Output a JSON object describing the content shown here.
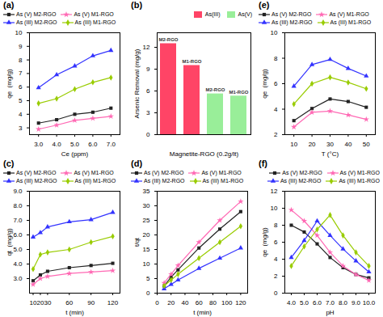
{
  "chart_data": [
    {
      "type": "line",
      "title": "(a)",
      "xlabel": "Ce (ppm)",
      "ylabel": "qe  (mg/g)",
      "xlim": [
        2.5,
        7.5
      ],
      "ylim": [
        2.5,
        10
      ],
      "xticks": [
        3,
        4,
        5,
        6,
        7
      ],
      "yticks": [
        3,
        4,
        5,
        6,
        7,
        8,
        9,
        10
      ],
      "legend": "upper left",
      "x": [
        3,
        4,
        5,
        6,
        7
      ],
      "series": [
        {
          "name": "As (V) M2-RGO",
          "color": "#222222",
          "marker": "square",
          "values": [
            3.35,
            3.6,
            4.0,
            4.15,
            4.45
          ]
        },
        {
          "name": "As (V) M1-RGO",
          "color": "#ff69b4",
          "marker": "star",
          "values": [
            2.9,
            3.2,
            3.55,
            3.7,
            3.85
          ]
        },
        {
          "name": "As (III) M2-RGO",
          "color": "#3333ff",
          "marker": "triangle",
          "values": [
            5.95,
            6.9,
            7.55,
            8.3,
            8.7
          ]
        },
        {
          "name": "As (III) M1-RGO",
          "color": "#99cc00",
          "marker": "diamond",
          "values": [
            4.8,
            5.15,
            5.85,
            6.35,
            6.7
          ]
        }
      ]
    },
    {
      "type": "bar",
      "title": "(b)",
      "xlabel": "Magnetite-RGO (0.2g/lt)",
      "ylabel": "Arsenic Removal (mg/g)",
      "ylim": [
        0,
        14
      ],
      "yticks": [
        0,
        3,
        6,
        9,
        12
      ],
      "tick_labels": "y",
      "legend": "upper right",
      "categories": [
        "M2-RGO",
        "M1-RGO",
        "M2-RGO",
        "M1-RGO"
      ],
      "series": [
        {
          "name": "As(III)",
          "color": "#ff4466",
          "values": [
            12.5,
            9.5,
            null,
            null
          ]
        },
        {
          "name": "As(V)",
          "color": "#99ee99",
          "values": [
            null,
            null,
            5.6,
            5.3
          ]
        }
      ]
    },
    {
      "type": "line",
      "title": "(e)",
      "xlabel": "T (°C)",
      "ylabel": "qe  (mg/g)",
      "xlim": [
        5,
        55
      ],
      "ylim": [
        2,
        10
      ],
      "xticks": [
        10,
        20,
        30,
        40,
        50
      ],
      "yticks": [
        2,
        4,
        6,
        8,
        10
      ],
      "legend": "upper left",
      "x": [
        10,
        20,
        30,
        40,
        50
      ],
      "series": [
        {
          "name": "As (V) M2-RGO",
          "color": "#222222",
          "marker": "square",
          "values": [
            3.1,
            4.05,
            4.8,
            4.6,
            4.15
          ]
        },
        {
          "name": "As (V) M1-RGO",
          "color": "#ff69b4",
          "marker": "star",
          "values": [
            2.6,
            3.75,
            3.85,
            3.55,
            3.2
          ]
        },
        {
          "name": "As (III) M2-RGO",
          "color": "#3333ff",
          "marker": "triangle",
          "values": [
            5.8,
            7.5,
            7.9,
            7.2,
            6.6
          ]
        },
        {
          "name": "As (III) M1-RGO",
          "color": "#99cc00",
          "marker": "diamond",
          "values": [
            4.4,
            6.0,
            6.5,
            6.1,
            5.6
          ]
        }
      ]
    },
    {
      "type": "line",
      "title": "(c)",
      "xlabel": "t (min)",
      "ylabel": "qt  (mg/g)",
      "xlim": [
        5,
        130
      ],
      "ylim": [
        2,
        9
      ],
      "xticks": [
        10,
        20,
        30,
        60,
        90,
        120
      ],
      "yticks": [
        3,
        4,
        5,
        6,
        7,
        8,
        9
      ],
      "legend": "upper left",
      "x": [
        10,
        20,
        30,
        60,
        90,
        120
      ],
      "series": [
        {
          "name": "As (V) M2-RGO",
          "color": "#222222",
          "marker": "square",
          "values": [
            2.85,
            3.25,
            3.5,
            3.75,
            3.9,
            4.05
          ]
        },
        {
          "name": "As (V) M1-RGO",
          "color": "#ff69b4",
          "marker": "star",
          "values": [
            2.6,
            3.0,
            3.15,
            3.35,
            3.45,
            3.55
          ]
        },
        {
          "name": "As (III) M2-RGO",
          "color": "#3333ff",
          "marker": "triangle",
          "values": [
            5.85,
            6.15,
            6.55,
            6.9,
            7.05,
            7.55
          ]
        },
        {
          "name": "As (III) M1-RGO",
          "color": "#99cc00",
          "marker": "diamond",
          "values": [
            3.65,
            4.65,
            4.8,
            5.0,
            5.5,
            5.9
          ]
        }
      ]
    },
    {
      "type": "line",
      "title": "(d)",
      "xlabel": "t (min)",
      "ylabel": "t/qt",
      "xlim": [
        0,
        130
      ],
      "ylim": [
        0,
        35
      ],
      "xticks": [
        0,
        20,
        40,
        60,
        80,
        100,
        120
      ],
      "yticks": [
        0,
        5,
        10,
        15,
        20,
        25,
        30,
        35
      ],
      "legend": "upper left",
      "x": [
        10,
        20,
        30,
        60,
        90,
        120
      ],
      "series": [
        {
          "name": "As (V) M2-RGO",
          "color": "#222222",
          "marker": "square",
          "values": [
            2.5,
            5.5,
            8.0,
            15.5,
            22.0,
            28.0
          ]
        },
        {
          "name": "As (V) M1-RGO",
          "color": "#ff69b4",
          "marker": "star",
          "values": [
            3.5,
            6.5,
            9.5,
            17.5,
            25.0,
            31.5
          ]
        },
        {
          "name": "As (III) M2-RGO",
          "color": "#3333ff",
          "marker": "triangle",
          "values": [
            1.5,
            3.0,
            4.5,
            8.5,
            12.0,
            15.5
          ]
        },
        {
          "name": "As (III) M1-RGO",
          "color": "#99cc00",
          "marker": "diamond",
          "values": [
            2.5,
            4.5,
            6.5,
            12.0,
            17.5,
            23.0
          ]
        }
      ]
    },
    {
      "type": "line",
      "title": "(f)",
      "xlabel": "pH",
      "ylabel": "qe  (mg/g)",
      "xlim": [
        3.5,
        10.5
      ],
      "ylim": [
        0,
        12
      ],
      "xticks": [
        4,
        5,
        6,
        7,
        8,
        9,
        10
      ],
      "yticks": [
        0,
        2,
        4,
        6,
        8,
        10,
        12
      ],
      "legend": "upper right",
      "x": [
        4,
        5,
        6,
        7,
        8,
        9,
        10
      ],
      "series": [
        {
          "name": "As (V) M2-RGO",
          "color": "#222222",
          "marker": "square",
          "values": [
            8.0,
            7.2,
            5.8,
            4.2,
            3.0,
            2.2,
            1.8
          ]
        },
        {
          "name": "As (V) M1-RGO",
          "color": "#ff69b4",
          "marker": "star",
          "values": [
            9.8,
            8.5,
            6.8,
            4.8,
            3.2,
            2.2,
            1.5
          ]
        },
        {
          "name": "As (III) M2-RGO",
          "color": "#3333ff",
          "marker": "triangle",
          "values": [
            4.2,
            6.2,
            8.5,
            6.8,
            5.2,
            3.8,
            2.5
          ]
        },
        {
          "name": "As (III) M1-RGO",
          "color": "#99cc00",
          "marker": "diamond",
          "values": [
            3.2,
            5.5,
            7.5,
            9.2,
            6.8,
            4.8,
            3.2
          ]
        }
      ]
    }
  ]
}
